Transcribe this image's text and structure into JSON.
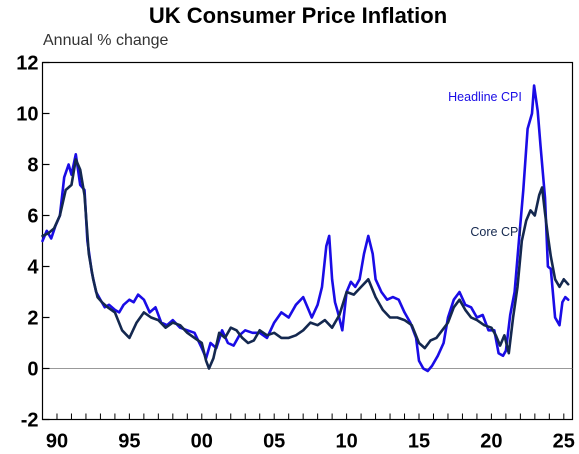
{
  "chart_data": {
    "type": "line",
    "title": "UK Consumer Price Inflation",
    "ylabel": "Annual % change",
    "xlabel": "",
    "xlim": [
      1989.0,
      2025.6
    ],
    "ylim": [
      -2,
      12
    ],
    "yticks": [
      -2,
      0,
      2,
      4,
      6,
      8,
      10,
      12
    ],
    "xticks": [
      {
        "year": 1990,
        "label": "90"
      },
      {
        "year": 1995,
        "label": "95"
      },
      {
        "year": 2000,
        "label": "00"
      },
      {
        "year": 2005,
        "label": "05"
      },
      {
        "year": 2010,
        "label": "10"
      },
      {
        "year": 2015,
        "label": "15"
      },
      {
        "year": 2020,
        "label": "20"
      },
      {
        "year": 2025,
        "label": "25"
      }
    ],
    "series": [
      {
        "name": "Headline CPI",
        "color": "#1a0ce6",
        "x": [
          1989.0,
          1989.3,
          1989.6,
          1989.9,
          1990.2,
          1990.5,
          1990.8,
          1991.0,
          1991.3,
          1991.6,
          1991.9,
          1992.1,
          1992.4,
          1992.7,
          1993.0,
          1993.3,
          1993.6,
          1994.0,
          1994.3,
          1994.6,
          1995.0,
          1995.3,
          1995.6,
          1996.0,
          1996.4,
          1996.8,
          1997.2,
          1997.6,
          1998.0,
          1998.5,
          1999.0,
          1999.5,
          2000.0,
          2000.3,
          2000.6,
          2001.0,
          2001.4,
          2001.8,
          2002.2,
          2002.6,
          2003.0,
          2003.5,
          2004.0,
          2004.5,
          2005.0,
          2005.5,
          2006.0,
          2006.5,
          2007.0,
          2007.3,
          2007.6,
          2008.0,
          2008.3,
          2008.6,
          2008.8,
          2009.0,
          2009.2,
          2009.4,
          2009.7,
          2010.0,
          2010.3,
          2010.6,
          2010.9,
          2011.2,
          2011.5,
          2011.8,
          2012.0,
          2012.4,
          2012.8,
          2013.2,
          2013.6,
          2014.0,
          2014.4,
          2014.8,
          2015.0,
          2015.3,
          2015.6,
          2015.9,
          2016.3,
          2016.7,
          2017.0,
          2017.4,
          2017.8,
          2018.2,
          2018.6,
          2019.0,
          2019.4,
          2019.8,
          2020.2,
          2020.5,
          2020.8,
          2021.0,
          2021.3,
          2021.6,
          2021.9,
          2022.2,
          2022.5,
          2022.8,
          2022.95,
          2023.2,
          2023.4,
          2023.7,
          2023.9,
          2024.1,
          2024.4,
          2024.7,
          2024.9,
          2025.1,
          2025.3
        ],
        "y": [
          5.0,
          5.4,
          5.1,
          5.6,
          6.0,
          7.5,
          8.0,
          7.6,
          8.4,
          7.2,
          7.0,
          5.0,
          3.8,
          3.0,
          2.7,
          2.4,
          2.5,
          2.3,
          2.2,
          2.5,
          2.7,
          2.6,
          2.9,
          2.7,
          2.2,
          2.4,
          1.8,
          1.7,
          1.9,
          1.6,
          1.5,
          1.4,
          0.8,
          0.4,
          1.0,
          0.8,
          1.5,
          1.0,
          0.9,
          1.3,
          1.5,
          1.4,
          1.4,
          1.2,
          1.8,
          2.2,
          2.0,
          2.5,
          2.8,
          2.4,
          2.0,
          2.5,
          3.2,
          4.8,
          5.2,
          3.5,
          2.6,
          2.2,
          1.5,
          3.0,
          3.4,
          3.2,
          3.5,
          4.5,
          5.2,
          4.5,
          3.5,
          3.0,
          2.7,
          2.8,
          2.7,
          2.2,
          1.8,
          1.2,
          0.3,
          0.0,
          -0.1,
          0.1,
          0.5,
          1.0,
          2.0,
          2.7,
          3.0,
          2.5,
          2.4,
          2.0,
          2.1,
          1.5,
          1.5,
          0.6,
          0.5,
          0.7,
          2.1,
          3.0,
          5.0,
          7.0,
          9.4,
          10.0,
          11.1,
          10.1,
          8.7,
          6.7,
          4.0,
          3.9,
          2.0,
          1.7,
          2.6,
          2.8,
          2.7
        ]
      },
      {
        "name": "Core CPI",
        "color": "#14284f",
        "x": [
          1989.0,
          1989.4,
          1989.8,
          1990.2,
          1990.6,
          1991.0,
          1991.3,
          1991.6,
          1991.9,
          1992.2,
          1992.5,
          1992.8,
          1993.1,
          1993.5,
          1994.0,
          1994.5,
          1995.0,
          1995.5,
          1996.0,
          1996.5,
          1997.0,
          1997.5,
          1998.0,
          1998.5,
          1999.0,
          1999.5,
          2000.0,
          2000.3,
          2000.5,
          2000.8,
          2001.2,
          2001.6,
          2002.0,
          2002.4,
          2002.8,
          2003.2,
          2003.6,
          2004.0,
          2004.5,
          2005.0,
          2005.5,
          2006.0,
          2006.5,
          2007.0,
          2007.5,
          2008.0,
          2008.5,
          2009.0,
          2009.5,
          2010.0,
          2010.5,
          2011.0,
          2011.5,
          2012.0,
          2012.5,
          2013.0,
          2013.5,
          2014.0,
          2014.5,
          2015.0,
          2015.4,
          2015.8,
          2016.2,
          2016.6,
          2017.0,
          2017.4,
          2017.8,
          2018.2,
          2018.6,
          2019.0,
          2019.5,
          2020.0,
          2020.3,
          2020.6,
          2020.9,
          2021.2,
          2021.5,
          2021.8,
          2022.1,
          2022.4,
          2022.7,
          2023.0,
          2023.3,
          2023.5,
          2023.7,
          2023.9,
          2024.1,
          2024.4,
          2024.7,
          2025.0,
          2025.3
        ],
        "y": [
          5.2,
          5.3,
          5.5,
          6.0,
          7.0,
          7.2,
          8.2,
          7.8,
          6.8,
          4.5,
          3.5,
          2.8,
          2.6,
          2.4,
          2.2,
          1.5,
          1.2,
          1.8,
          2.2,
          2.0,
          1.9,
          1.6,
          1.8,
          1.7,
          1.4,
          1.2,
          1.0,
          0.3,
          0.0,
          0.4,
          1.4,
          1.2,
          1.6,
          1.5,
          1.2,
          1.0,
          1.1,
          1.5,
          1.3,
          1.4,
          1.2,
          1.2,
          1.3,
          1.5,
          1.8,
          1.7,
          1.9,
          1.6,
          2.1,
          3.0,
          2.9,
          3.2,
          3.5,
          2.8,
          2.3,
          2.0,
          2.0,
          1.9,
          1.7,
          1.0,
          0.8,
          1.1,
          1.2,
          1.5,
          1.8,
          2.4,
          2.7,
          2.3,
          2.0,
          1.9,
          1.7,
          1.6,
          1.3,
          0.9,
          1.3,
          0.6,
          2.0,
          3.2,
          5.0,
          5.8,
          6.2,
          6.0,
          6.8,
          7.1,
          6.1,
          5.2,
          4.4,
          3.5,
          3.2,
          3.5,
          3.3
        ]
      }
    ],
    "annotations": [
      {
        "text": "Headline CPI",
        "series": 0,
        "x": 2022.1,
        "y": 10.5
      },
      {
        "text": "Core CPI",
        "series": 1,
        "x": 2022.1,
        "y": 5.2
      }
    ],
    "grid": false,
    "zero_line": true
  }
}
